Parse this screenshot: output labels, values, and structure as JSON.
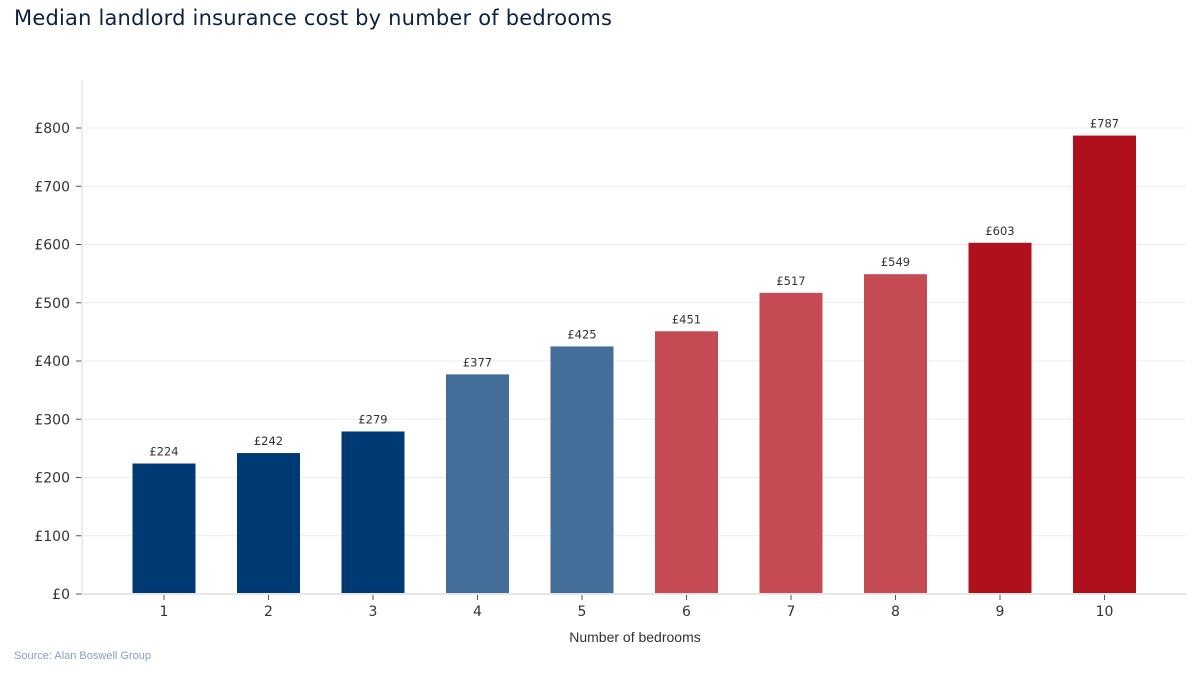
{
  "chart_data": {
    "type": "bar",
    "title": "Median landlord insurance cost by number of bedrooms",
    "xlabel": "Number of bedrooms",
    "ylabel": "",
    "source": "Source: Alan Boswell Group",
    "categories": [
      "1",
      "2",
      "3",
      "4",
      "5",
      "6",
      "7",
      "8",
      "9",
      "10"
    ],
    "values": [
      224,
      242,
      279,
      377,
      425,
      451,
      517,
      549,
      603,
      787
    ],
    "data_labels": [
      "£224",
      "£242",
      "£279",
      "£377",
      "£425",
      "£451",
      "£517",
      "£549",
      "£603",
      "£787"
    ],
    "bar_colors": [
      "#003a75",
      "#003a75",
      "#003a75",
      "#436e9a",
      "#436e9a",
      "#c44b53",
      "#c44b53",
      "#c44b53",
      "#b0101c",
      "#b0101c"
    ],
    "yticks": [
      0,
      100,
      200,
      300,
      400,
      500,
      600,
      700,
      800
    ],
    "ytick_labels": [
      "£0",
      "£100",
      "£200",
      "£300",
      "£400",
      "£500",
      "£600",
      "£700",
      "£800"
    ],
    "ylim": [
      0,
      880
    ],
    "grid": true
  }
}
